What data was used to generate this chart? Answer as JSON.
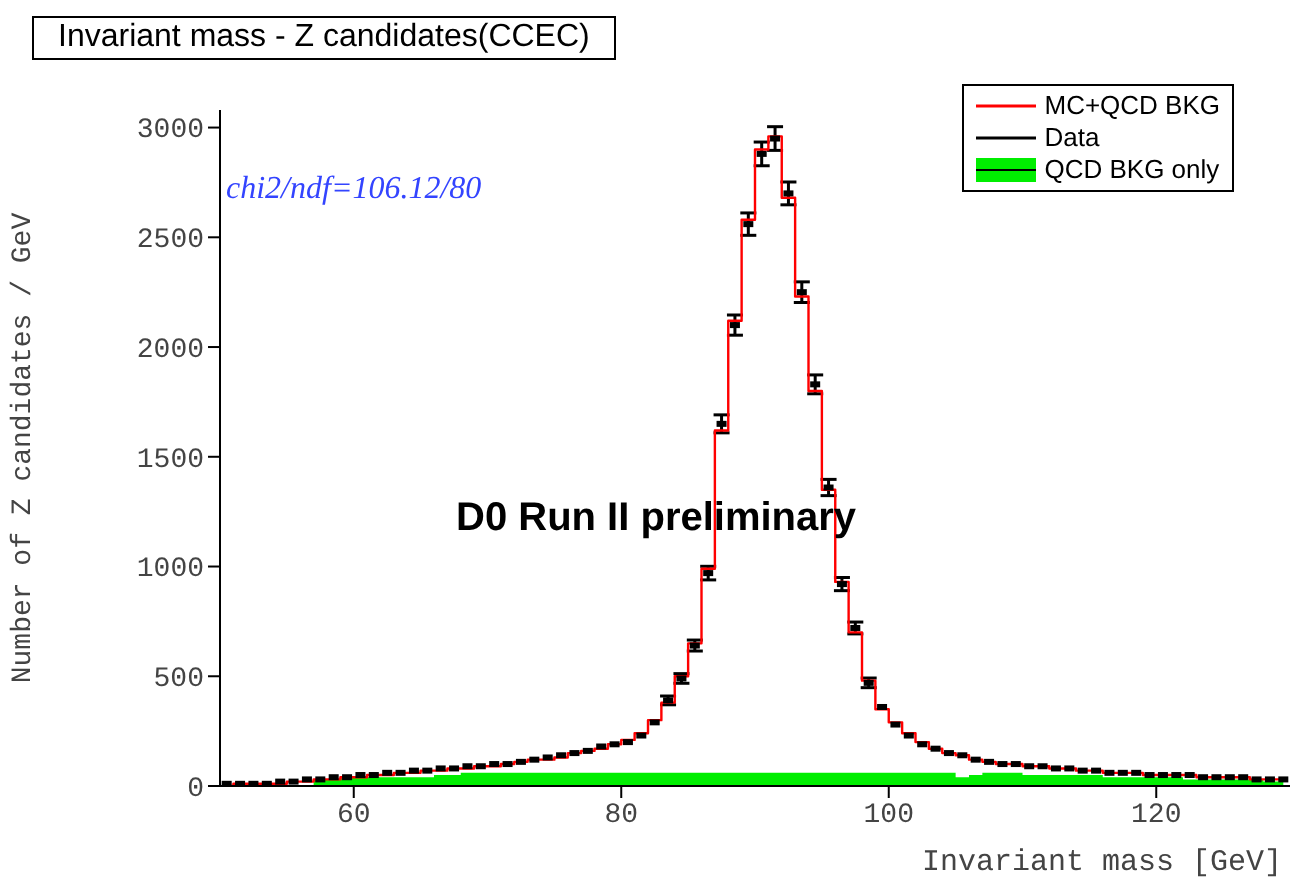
{
  "chart_data": {
    "type": "step",
    "title": "Invariant mass - Z candidates(CCEC)",
    "xlabel": "Invariant mass [GeV]",
    "ylabel": "Number of Z candidates / GeV",
    "annotations": [
      "chi2/ndf=106.12/80",
      "D0 Run II preliminary"
    ],
    "x": [
      50.5,
      51.5,
      52.5,
      53.5,
      54.5,
      55.5,
      56.5,
      57.5,
      58.5,
      59.5,
      60.5,
      61.5,
      62.5,
      63.5,
      64.5,
      65.5,
      66.5,
      67.5,
      68.5,
      69.5,
      70.5,
      71.5,
      72.5,
      73.5,
      74.5,
      75.5,
      76.5,
      77.5,
      78.5,
      79.5,
      80.5,
      81.5,
      82.5,
      83.5,
      84.5,
      85.5,
      86.5,
      87.5,
      88.5,
      89.5,
      90.5,
      91.5,
      92.5,
      93.5,
      94.5,
      95.5,
      96.5,
      97.5,
      98.5,
      99.5,
      100.5,
      101.5,
      102.5,
      103.5,
      104.5,
      105.5,
      106.5,
      107.5,
      108.5,
      109.5,
      110.5,
      111.5,
      112.5,
      113.5,
      114.5,
      115.5,
      116.5,
      117.5,
      118.5,
      119.5,
      120.5,
      121.5,
      122.5,
      123.5,
      124.5,
      125.5,
      126.5,
      127.5,
      128.5,
      129.5
    ],
    "xlim": [
      50,
      130
    ],
    "xticks": [
      60,
      80,
      100,
      120
    ],
    "ylim": [
      0,
      3080
    ],
    "yticks": [
      0,
      500,
      1000,
      1500,
      2000,
      2500,
      3000
    ],
    "legend": "top right",
    "series": [
      {
        "name": "MC+QCD BKG",
        "color": "#ff0000",
        "values": [
          0,
          10,
          10,
          10,
          10,
          20,
          20,
          30,
          30,
          40,
          40,
          50,
          50,
          60,
          60,
          70,
          70,
          80,
          80,
          90,
          90,
          100,
          110,
          120,
          120,
          130,
          150,
          160,
          170,
          190,
          210,
          240,
          300,
          380,
          500,
          650,
          990,
          1620,
          2120,
          2580,
          2900,
          2960,
          2680,
          2230,
          1800,
          1350,
          930,
          700,
          480,
          350,
          290,
          240,
          200,
          170,
          150,
          140,
          120,
          110,
          100,
          100,
          90,
          90,
          80,
          80,
          70,
          70,
          60,
          60,
          60,
          50,
          50,
          50,
          50,
          40,
          40,
          40,
          40,
          30,
          30,
          30
        ]
      },
      {
        "name": "Data",
        "type": "scatter",
        "color": "#000000",
        "values": [
          10,
          10,
          10,
          10,
          20,
          20,
          30,
          30,
          40,
          40,
          50,
          50,
          60,
          60,
          70,
          70,
          80,
          80,
          90,
          90,
          100,
          100,
          110,
          120,
          130,
          140,
          150,
          160,
          180,
          190,
          200,
          230,
          290,
          390,
          490,
          640,
          970,
          1650,
          2100,
          2560,
          2880,
          2950,
          2700,
          2250,
          1830,
          1360,
          920,
          720,
          470,
          360,
          280,
          230,
          190,
          170,
          150,
          140,
          120,
          110,
          100,
          100,
          90,
          90,
          80,
          80,
          70,
          70,
          60,
          60,
          60,
          50,
          50,
          50,
          50,
          40,
          40,
          40,
          40,
          30,
          30,
          30
        ],
        "errors": [
          null,
          null,
          null,
          null,
          null,
          null,
          null,
          null,
          null,
          null,
          null,
          null,
          null,
          null,
          null,
          null,
          null,
          null,
          null,
          null,
          null,
          null,
          null,
          null,
          null,
          null,
          null,
          null,
          null,
          null,
          null,
          null,
          null,
          20,
          22,
          25,
          31,
          41,
          46,
          51,
          54,
          54,
          52,
          47,
          43,
          37,
          30,
          27,
          22,
          null,
          null,
          null,
          null,
          null,
          null,
          null,
          null,
          null,
          null,
          null,
          null,
          null,
          null,
          null,
          null,
          null,
          null,
          null,
          null,
          null,
          null,
          null,
          null,
          null,
          null,
          null,
          null,
          null,
          null,
          null
        ]
      },
      {
        "name": "QCD BKG only",
        "type": "area",
        "color": "#00ee00",
        "values": [
          0,
          0,
          0,
          0,
          0,
          0,
          0,
          30,
          30,
          40,
          40,
          40,
          40,
          40,
          40,
          40,
          50,
          50,
          60,
          60,
          60,
          60,
          60,
          60,
          60,
          60,
          60,
          60,
          60,
          60,
          60,
          60,
          60,
          60,
          60,
          60,
          60,
          60,
          60,
          60,
          60,
          60,
          60,
          60,
          60,
          60,
          60,
          60,
          60,
          60,
          60,
          60,
          60,
          60,
          60,
          40,
          50,
          60,
          60,
          60,
          50,
          50,
          50,
          50,
          50,
          50,
          40,
          40,
          40,
          40,
          40,
          40,
          30,
          30,
          30,
          30,
          30,
          30,
          20,
          20
        ]
      }
    ]
  }
}
